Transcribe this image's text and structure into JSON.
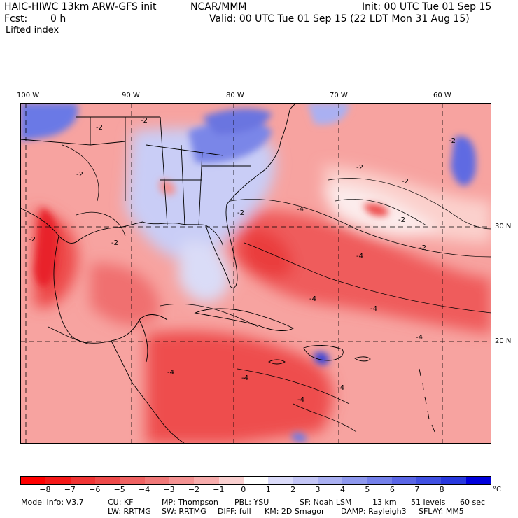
{
  "header": {
    "model_title": "HAIC-HIWC 13km ARW-GFS init",
    "org": "NCAR/MMM",
    "init": "Init: 00 UTC Tue 01 Sep 15",
    "fcst_label": "Fcst:",
    "fcst_value": "0 h",
    "valid": "Valid: 00 UTC Tue 01 Sep 15 (22 LDT Mon 31 Aug 15)",
    "field": "Lifted index"
  },
  "map": {
    "lon_labels": [
      "100 W",
      "90 W",
      "80 W",
      "70 W",
      "60 W"
    ],
    "lat_labels": [
      "30 N",
      "20 N"
    ],
    "contour_labels": [
      "-2",
      "-4"
    ],
    "region": "Gulf of Mexico, Caribbean and western Atlantic",
    "colors": {
      "deep_red": "#e8242c",
      "red": "#f05a5a",
      "salmon": "#f7a3a0",
      "pink": "#fbd0cc",
      "white": "#ffffff",
      "lavender": "#d2d6f6",
      "blue": "#6a79e6",
      "deep_blue": "#3642d8",
      "coast": "#000000",
      "grid": "#000000"
    }
  },
  "colorbar": {
    "ticks": [
      "−8",
      "−7",
      "−6",
      "−5",
      "−4",
      "−3",
      "−2",
      "−1",
      "0",
      "1",
      "2",
      "3",
      "4",
      "5",
      "6",
      "7",
      "8"
    ],
    "unit": "°C",
    "swatches": [
      "#ff0000",
      "#f51818",
      "#f03434",
      "#ee4a4a",
      "#ef6262",
      "#f07878",
      "#f49292",
      "#f7acac",
      "#fad0d0",
      "#ffffff",
      "#dcdcfa",
      "#c4c6f6",
      "#aab0f2",
      "#8e98ee",
      "#7480ea",
      "#5a66e6",
      "#4050e2",
      "#2838de",
      "#0000dc"
    ]
  },
  "footer": {
    "model_info": "Model Info: V3.7",
    "cu": "CU: KF",
    "mp": "MP: Thompson",
    "pbl": "PBL: YSU",
    "sf": "SF: Noah LSM",
    "res": "13 km",
    "levels": "51 levels",
    "dt": "60 sec",
    "lw": "LW: RRTMG",
    "sw": "SW: RRTMG",
    "diff": "DIFF: full",
    "km": "KM: 2D Smagor",
    "damp": "DAMP: Rayleigh3",
    "sflay": "SFLAY: MM5"
  }
}
